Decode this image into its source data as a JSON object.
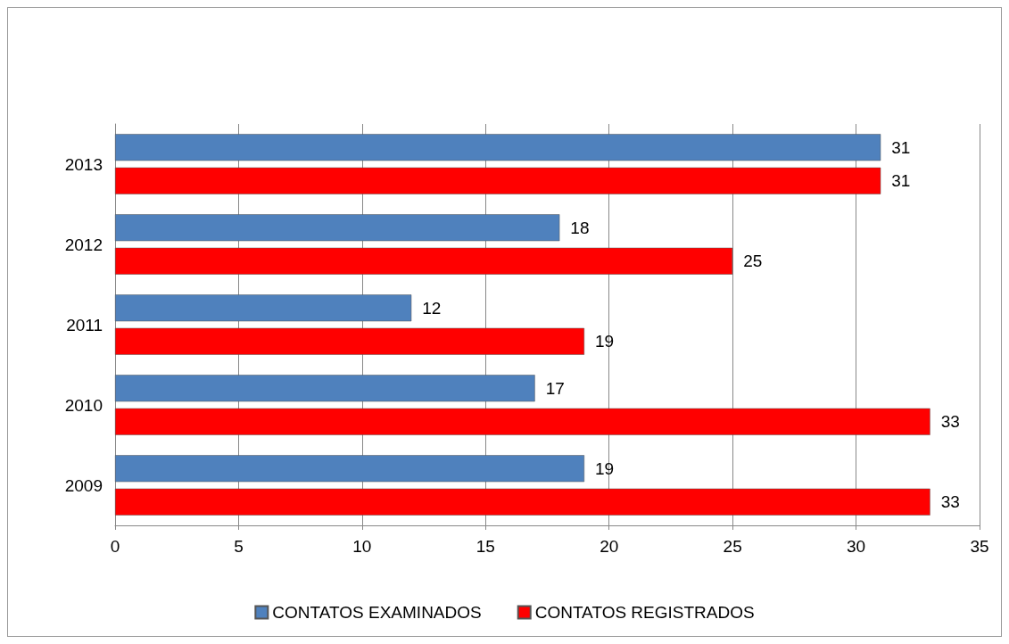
{
  "chart_data": {
    "type": "bar",
    "orientation": "horizontal",
    "categories": [
      "2013",
      "2012",
      "2011",
      "2010",
      "2009"
    ],
    "series": [
      {
        "name": "CONTATOS EXAMINADOS",
        "color": "#4f81bd",
        "values": [
          31,
          18,
          12,
          17,
          19
        ]
      },
      {
        "name": "CONTATOS REGISTRADOS",
        "color": "#ff0000",
        "values": [
          31,
          25,
          19,
          33,
          33
        ]
      }
    ],
    "xlim": [
      0,
      35
    ],
    "xticks": [
      0,
      5,
      10,
      15,
      20,
      25,
      30,
      35
    ],
    "grid": "x",
    "data_labels": true,
    "legend": "bottom"
  }
}
